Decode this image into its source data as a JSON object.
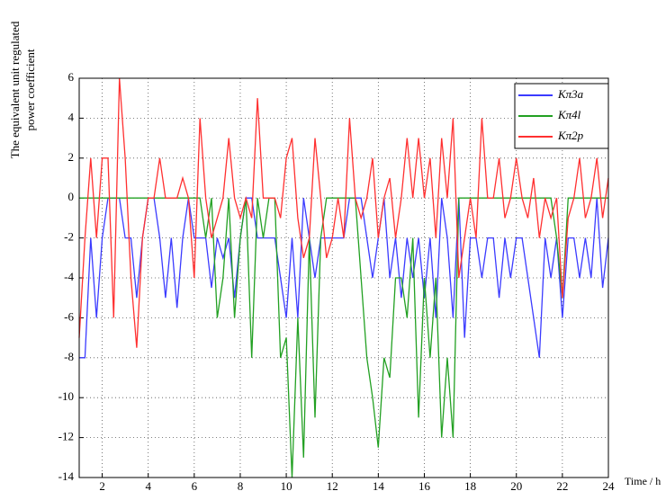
{
  "chart_data": {
    "type": "line",
    "ylabel": [
      "The equivalent unit regulated",
      "power coefficient"
    ],
    "xlabel": "Time / h",
    "xlim": [
      1,
      24
    ],
    "ylim": [
      -14,
      6
    ],
    "xticks": [
      2,
      4,
      6,
      8,
      10,
      12,
      14,
      16,
      18,
      20,
      22,
      24
    ],
    "yticks": [
      -14,
      -12,
      -10,
      -8,
      -6,
      -4,
      -2,
      0,
      2,
      4,
      6
    ],
    "grid": true,
    "legend": "upper right",
    "x": [
      1,
      1.25,
      1.5,
      1.75,
      2,
      2.25,
      2.5,
      2.75,
      3,
      3.25,
      3.5,
      3.75,
      4,
      4.25,
      4.5,
      4.75,
      5,
      5.25,
      5.5,
      5.75,
      6,
      6.25,
      6.5,
      6.75,
      7,
      7.25,
      7.5,
      7.75,
      8,
      8.25,
      8.5,
      8.75,
      9,
      9.25,
      9.5,
      9.75,
      10,
      10.25,
      10.5,
      10.75,
      11,
      11.25,
      11.5,
      11.75,
      12,
      12.25,
      12.5,
      12.75,
      13,
      13.25,
      13.5,
      13.75,
      14,
      14.25,
      14.5,
      14.75,
      15,
      15.25,
      15.5,
      15.75,
      16,
      16.25,
      16.5,
      16.75,
      17,
      17.25,
      17.5,
      17.75,
      18,
      18.25,
      18.5,
      18.75,
      19,
      19.25,
      19.5,
      19.75,
      20,
      20.25,
      20.5,
      20.75,
      21,
      21.25,
      21.5,
      21.75,
      22,
      22.25,
      22.5,
      22.75,
      23,
      23.25,
      23.5,
      23.75,
      24
    ],
    "series": [
      {
        "name": "Kπ3a",
        "color": "#3b3bff",
        "values": [
          -8,
          -8,
          -2,
          -6,
          -2,
          0,
          0,
          0,
          -2,
          -2,
          -5,
          -2,
          0,
          0,
          -2,
          -5,
          -2,
          -5.5,
          -2,
          0,
          -2,
          -2,
          -2,
          -4.5,
          -2,
          -3,
          -2,
          -5,
          -2,
          0,
          0,
          -2,
          -2,
          -2,
          -2,
          -4,
          -6,
          -2,
          -6,
          0,
          -2,
          -4,
          -2,
          -2,
          -2,
          -2,
          -2,
          0,
          0,
          0,
          -2,
          -4,
          -2,
          0,
          -4,
          -2,
          -5,
          -2,
          -4,
          -2,
          -5,
          -2,
          -6,
          0,
          -2,
          -6,
          0,
          -7,
          -2,
          -2,
          -4,
          -2,
          -2,
          -5,
          -2,
          -4,
          -2,
          -2,
          -4,
          -6,
          -8,
          -2,
          -4,
          -2,
          -6,
          -2,
          -2,
          -4,
          -2,
          -4,
          0,
          -4.5,
          -2
        ]
      },
      {
        "name": "Kπ4l",
        "color": "#22a022",
        "values": [
          0,
          0,
          0,
          0,
          0,
          0,
          0,
          0,
          0,
          0,
          0,
          0,
          0,
          0,
          0,
          0,
          0,
          0,
          0,
          0,
          0,
          0,
          -2,
          0,
          -6,
          -4,
          0,
          -6,
          -2,
          0,
          -8,
          0,
          -2,
          0,
          0,
          -8,
          -7,
          -14,
          -6,
          -13,
          -2,
          -11,
          -2,
          0,
          0,
          0,
          0,
          0,
          0,
          -4,
          -8,
          -10,
          -12.5,
          -8,
          -9,
          -4,
          -4,
          -6,
          -2,
          -11,
          -4,
          -8,
          -4,
          -12,
          -8,
          -12,
          0,
          0,
          0,
          0,
          0,
          0,
          0,
          0,
          0,
          0,
          0,
          0,
          0,
          0,
          0,
          0,
          0,
          -2,
          -5,
          0,
          0,
          0,
          0,
          0,
          0,
          0,
          0
        ]
      },
      {
        "name": "Kπ2p",
        "color": "#ff3030",
        "values": [
          -7,
          -2,
          2,
          -2,
          2,
          2,
          -6,
          6,
          2,
          -4,
          -7.5,
          -2,
          0,
          0,
          2,
          0,
          0,
          0,
          1,
          0,
          -4,
          4,
          0,
          -2,
          -1,
          0,
          3,
          0,
          -1,
          0,
          -1,
          5,
          0,
          0,
          0,
          -1,
          2,
          3,
          -1,
          -3,
          -2,
          3,
          0,
          -3,
          -2,
          0,
          -2,
          4,
          0,
          -1,
          0,
          2,
          -2,
          0,
          1,
          -2,
          0,
          3,
          0,
          3,
          0,
          2,
          -2,
          3,
          0,
          4,
          -4,
          -2,
          0,
          -2,
          4,
          0,
          0,
          2,
          -1,
          0,
          2,
          0,
          -1,
          1,
          -2,
          0,
          -1,
          0,
          -5,
          -1,
          0,
          2,
          -1,
          0,
          2,
          -1,
          1
        ]
      }
    ]
  }
}
